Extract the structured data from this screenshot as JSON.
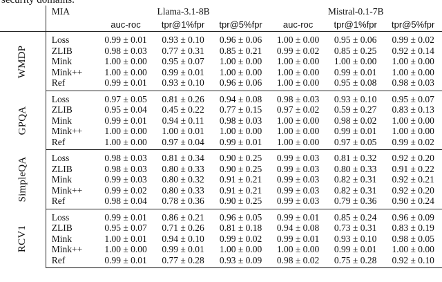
{
  "caption_tail": "security domains.",
  "header": {
    "mia_label": "MIA",
    "models": [
      "Llama-3.1-8B",
      "Mistral-0.1-7B"
    ],
    "metrics": [
      "auc-roc",
      "tpr@1%fpr",
      "tpr@5%fpr"
    ]
  },
  "groups": [
    {
      "dataset": "WMDP",
      "rows": [
        {
          "mia": "Loss",
          "vals": [
            "0.99 ± 0.01",
            "0.93 ± 0.10",
            "0.96 ± 0.06",
            "1.00 ± 0.00",
            "0.95 ± 0.06",
            "0.99 ± 0.02"
          ]
        },
        {
          "mia": "ZLIB",
          "vals": [
            "0.98 ± 0.03",
            "0.77 ± 0.31",
            "0.85 ± 0.21",
            "0.99 ± 0.02",
            "0.85 ± 0.25",
            "0.92 ± 0.14"
          ]
        },
        {
          "mia": "Mink",
          "vals": [
            "1.00 ± 0.00",
            "0.95 ± 0.07",
            "1.00 ± 0.00",
            "1.00 ± 0.00",
            "1.00 ± 0.00",
            "1.00 ± 0.00"
          ]
        },
        {
          "mia": "Mink++",
          "vals": [
            "1.00 ± 0.00",
            "0.99 ± 0.01",
            "1.00 ± 0.00",
            "1.00 ± 0.00",
            "0.99 ± 0.01",
            "1.00 ± 0.00"
          ]
        },
        {
          "mia": "Ref",
          "vals": [
            "0.99 ± 0.01",
            "0.93 ± 0.10",
            "0.96 ± 0.06",
            "1.00 ± 0.00",
            "0.95 ± 0.08",
            "0.98 ± 0.03"
          ]
        }
      ]
    },
    {
      "dataset": "GPQA",
      "rows": [
        {
          "mia": "Loss",
          "vals": [
            "0.97 ± 0.05",
            "0.81 ± 0.26",
            "0.94 ± 0.08",
            "0.98 ± 0.03",
            "0.93 ± 0.10",
            "0.95 ± 0.07"
          ]
        },
        {
          "mia": "ZLIB",
          "vals": [
            "0.95 ± 0.04",
            "0.45 ± 0.22",
            "0.77 ± 0.15",
            "0.97 ± 0.02",
            "0.59 ± 0.27",
            "0.83 ± 0.13"
          ]
        },
        {
          "mia": "Mink",
          "vals": [
            "0.99 ± 0.01",
            "0.94 ± 0.11",
            "0.98 ± 0.03",
            "1.00 ± 0.00",
            "0.98 ± 0.02",
            "1.00 ± 0.00"
          ]
        },
        {
          "mia": "Mink++",
          "vals": [
            "1.00 ± 0.00",
            "1.00 ± 0.01",
            "1.00 ± 0.00",
            "1.00 ± 0.00",
            "0.99 ± 0.01",
            "1.00 ± 0.00"
          ]
        },
        {
          "mia": "Ref",
          "vals": [
            "1.00 ± 0.00",
            "0.97 ± 0.04",
            "0.99 ± 0.01",
            "1.00 ± 0.00",
            "0.97 ± 0.05",
            "0.99 ± 0.02"
          ]
        }
      ]
    },
    {
      "dataset": "SimpleQA",
      "rows": [
        {
          "mia": "Loss",
          "vals": [
            "0.98 ± 0.03",
            "0.81 ± 0.34",
            "0.90 ± 0.25",
            "0.99 ± 0.03",
            "0.81 ± 0.32",
            "0.92 ± 0.20"
          ]
        },
        {
          "mia": "ZLIB",
          "vals": [
            "0.98 ± 0.03",
            "0.80 ± 0.33",
            "0.90 ± 0.25",
            "0.99 ± 0.03",
            "0.80 ± 0.33",
            "0.91 ± 0.22"
          ]
        },
        {
          "mia": "Mink",
          "vals": [
            "0.99 ± 0.03",
            "0.80 ± 0.32",
            "0.91 ± 0.21",
            "0.99 ± 0.03",
            "0.82 ± 0.31",
            "0.92 ± 0.21"
          ]
        },
        {
          "mia": "Mink++",
          "vals": [
            "0.99 ± 0.02",
            "0.80 ± 0.33",
            "0.91 ± 0.21",
            "0.99 ± 0.03",
            "0.82 ± 0.31",
            "0.92 ± 0.20"
          ]
        },
        {
          "mia": "Ref",
          "vals": [
            "0.98 ± 0.04",
            "0.78 ± 0.36",
            "0.90 ± 0.25",
            "0.99 ± 0.03",
            "0.79 ± 0.36",
            "0.90 ± 0.24"
          ]
        }
      ]
    },
    {
      "dataset": "RCV1",
      "rows": [
        {
          "mia": "Loss",
          "vals": [
            "0.99 ± 0.01",
            "0.86 ± 0.21",
            "0.96 ± 0.05",
            "0.99 ± 0.01",
            "0.85 ± 0.24",
            "0.96 ± 0.09"
          ]
        },
        {
          "mia": "ZLIB",
          "vals": [
            "0.95 ± 0.07",
            "0.71 ± 0.26",
            "0.81 ± 0.18",
            "0.94 ± 0.08",
            "0.73 ± 0.31",
            "0.83 ± 0.19"
          ]
        },
        {
          "mia": "Mink",
          "vals": [
            "1.00 ± 0.01",
            "0.94 ± 0.10",
            "0.99 ± 0.02",
            "0.99 ± 0.01",
            "0.93 ± 0.10",
            "0.98 ± 0.05"
          ]
        },
        {
          "mia": "Mink++",
          "vals": [
            "1.00 ± 0.00",
            "0.99 ± 0.01",
            "1.00 ± 0.00",
            "1.00 ± 0.00",
            "0.99 ± 0.01",
            "1.00 ± 0.00"
          ]
        },
        {
          "mia": "Ref",
          "vals": [
            "0.99 ± 0.01",
            "0.77 ± 0.28",
            "0.93 ± 0.09",
            "0.98 ± 0.02",
            "0.75 ± 0.28",
            "0.92 ± 0.10"
          ]
        }
      ]
    }
  ]
}
